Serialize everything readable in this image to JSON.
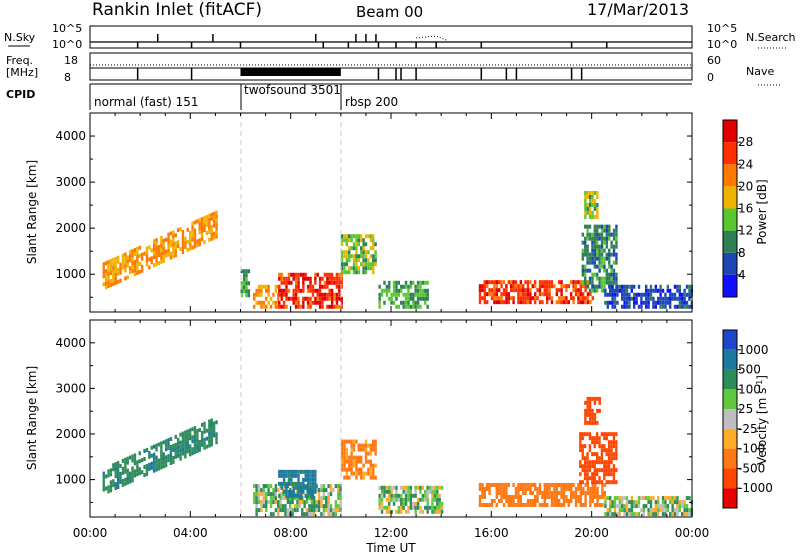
{
  "header": {
    "station": "Rankin Inlet (fitACF)",
    "beam": "Beam 00",
    "date": "17/Mar/2013"
  },
  "strip": {
    "nsky_label": "N.Sky",
    "nsky_ticks": [
      "10^5",
      "10^0"
    ],
    "nsearch_label": "N.Search",
    "nsearch_ticks": [
      "10^5",
      "10^0"
    ],
    "freq_label_top": "Freq.",
    "freq_label_unit": "[MHz]",
    "freq_ticks": [
      "18",
      "8"
    ],
    "nave_label": "Nave",
    "nave_ticks": [
      "60",
      "0"
    ],
    "cpid_label": "CPID",
    "cpid_segments": [
      {
        "start_h": 0,
        "end_h": 6,
        "label": "normal (fast) 151"
      },
      {
        "start_h": 6,
        "end_h": 10,
        "label": "twofsound 3501"
      },
      {
        "start_h": 10,
        "end_h": 24,
        "label": "rbsp 200"
      }
    ]
  },
  "xaxis": {
    "label": "Time UT",
    "ticks": [
      "00:00",
      "04:00",
      "08:00",
      "12:00",
      "16:00",
      "20:00",
      "00:00"
    ]
  },
  "power_colorbar": {
    "label": "Power [dB]",
    "ticks": [
      "4",
      "8",
      "12",
      "16",
      "20",
      "24",
      "28"
    ],
    "colors": [
      "#1010ff",
      "#1e46b4",
      "#2f7f55",
      "#58c830",
      "#f0b400",
      "#ff7800",
      "#ff3000",
      "#e00000"
    ]
  },
  "velocity_colorbar": {
    "label_main": "Velocity",
    "label_unit": "[m s",
    "label_sup": "-1",
    "label_close": "]",
    "ticks": [
      "1000",
      "500",
      "100",
      "25",
      "-25",
      "-100",
      "-500",
      "-1000"
    ],
    "colors": [
      "#1e46c8",
      "#1c78a0",
      "#2e8c5a",
      "#60c840",
      "#bebebe",
      "#ffaa28",
      "#ff7814",
      "#ff4600",
      "#e60000"
    ]
  },
  "chart_data": [
    {
      "type": "line",
      "title": "N.Sky / N.Search",
      "x_range_h": [
        0,
        24
      ],
      "ylim_log": [
        0,
        5
      ]
    },
    {
      "type": "line",
      "title": "Freq. / Nave",
      "x_range_h": [
        0,
        24
      ],
      "ylim_freq_mhz": [
        8,
        18
      ],
      "ylim_nave": [
        0,
        60
      ]
    },
    {
      "type": "heatmap",
      "title": "Power",
      "ylabel": "Slant Range [km]",
      "xlabel": "Time UT",
      "ylim": [
        180,
        4500
      ],
      "yticks": [
        1000,
        2000,
        3000,
        4000
      ],
      "x_range_h": [
        0,
        24
      ],
      "regions": [
        {
          "t": [
            0.5,
            5.0
          ],
          "r": [
            650,
            1250
          ],
          "slope": 250,
          "v": 20
        },
        {
          "t": [
            6.0,
            6.3
          ],
          "r": [
            500,
            1100
          ],
          "slope": 0,
          "v": 12
        },
        {
          "t": [
            6.5,
            7.5
          ],
          "r": [
            250,
            700
          ],
          "slope": 0,
          "v": 20
        },
        {
          "t": [
            7.5,
            10.0
          ],
          "r": [
            250,
            1000
          ],
          "slope": 0,
          "v": 27
        },
        {
          "t": [
            10.0,
            11.4
          ],
          "r": [
            1000,
            1800
          ],
          "slope": 0,
          "v": 14
        },
        {
          "t": [
            11.5,
            13.5
          ],
          "r": [
            250,
            800
          ],
          "slope": 0,
          "v": 12
        },
        {
          "t": [
            15.5,
            20.0
          ],
          "r": [
            350,
            850
          ],
          "slope": 0,
          "v": 26
        },
        {
          "t": [
            19.6,
            21.0
          ],
          "r": [
            600,
            2000
          ],
          "slope": 0,
          "v": 10
        },
        {
          "t": [
            19.7,
            20.2
          ],
          "r": [
            2200,
            2800
          ],
          "slope": 0,
          "v": 15
        },
        {
          "t": [
            20.5,
            24.0
          ],
          "r": [
            250,
            700
          ],
          "slope": 0,
          "v": 6
        }
      ]
    },
    {
      "type": "heatmap",
      "title": "Velocity",
      "ylabel": "Slant Range [km]",
      "xlabel": "Time UT",
      "ylim": [
        180,
        4500
      ],
      "yticks": [
        1000,
        2000,
        3000,
        4000
      ],
      "x_range_h": [
        0,
        24
      ],
      "regions": [
        {
          "t": [
            0.5,
            5.0
          ],
          "r": [
            650,
            1250
          ],
          "slope": 250,
          "v": 400
        },
        {
          "t": [
            6.5,
            10.0
          ],
          "r": [
            200,
            900
          ],
          "slope": 0,
          "v": 80
        },
        {
          "t": [
            7.5,
            9.0
          ],
          "r": [
            600,
            1200
          ],
          "slope": 0,
          "v": 600
        },
        {
          "t": [
            10.0,
            11.4
          ],
          "r": [
            1000,
            1800
          ],
          "slope": 0,
          "v": -200
        },
        {
          "t": [
            11.5,
            14.0
          ],
          "r": [
            250,
            800
          ],
          "slope": 0,
          "v": 60
        },
        {
          "t": [
            15.5,
            20.5
          ],
          "r": [
            400,
            900
          ],
          "slope": 0,
          "v": -300
        },
        {
          "t": [
            19.5,
            21.0
          ],
          "r": [
            900,
            2000
          ],
          "slope": 0,
          "v": -700
        },
        {
          "t": [
            19.7,
            20.3
          ],
          "r": [
            2200,
            2800
          ],
          "slope": 0,
          "v": -800
        },
        {
          "t": [
            20.5,
            24.0
          ],
          "r": [
            200,
            600
          ],
          "slope": 0,
          "v": 50
        }
      ]
    }
  ]
}
